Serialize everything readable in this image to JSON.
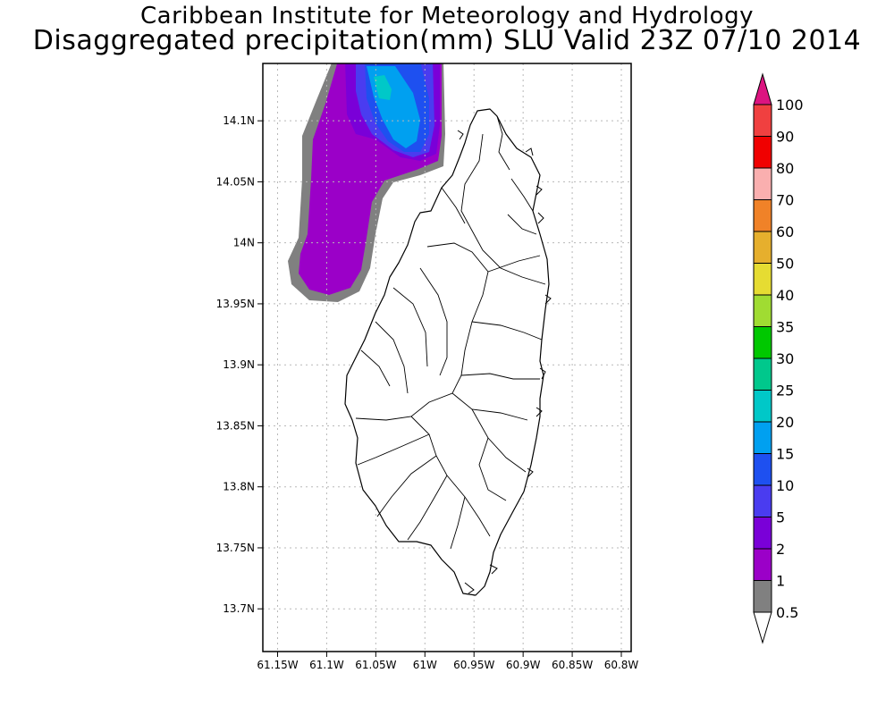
{
  "header": {
    "line1": "Caribbean Institute for Meteorology and Hydrology",
    "line2": "Disaggregated precipitation(mm) SLU Valid 23Z 07/10 2014"
  },
  "axes": {
    "lat_ticks": [
      {
        "label": "14.1N",
        "value": 14.1
      },
      {
        "label": "14.05N",
        "value": 14.05
      },
      {
        "label": "14N",
        "value": 14.0
      },
      {
        "label": "13.95N",
        "value": 13.95
      },
      {
        "label": "13.9N",
        "value": 13.9
      },
      {
        "label": "13.85N",
        "value": 13.85
      },
      {
        "label": "13.8N",
        "value": 13.8
      },
      {
        "label": "13.75N",
        "value": 13.75
      },
      {
        "label": "13.7N",
        "value": 13.7
      }
    ],
    "lon_ticks": [
      {
        "label": "61.15W",
        "value": -61.15
      },
      {
        "label": "61.1W",
        "value": -61.1
      },
      {
        "label": "61.05W",
        "value": -61.05
      },
      {
        "label": "61W",
        "value": -61.0
      },
      {
        "label": "60.95W",
        "value": -60.95
      },
      {
        "label": "60.9W",
        "value": -60.9
      },
      {
        "label": "60.85W",
        "value": -60.85
      },
      {
        "label": "60.8W",
        "value": -60.8
      }
    ],
    "lon_range": [
      -61.165,
      -60.79
    ],
    "lat_range": [
      13.665,
      14.147
    ]
  },
  "colorbar": {
    "levels": [
      "0.5",
      "1",
      "2",
      "5",
      "10",
      "15",
      "20",
      "25",
      "30",
      "35",
      "40",
      "50",
      "60",
      "70",
      "80",
      "90",
      "100"
    ],
    "colors": [
      "#ffffff",
      "#808080",
      "#9b00c8",
      "#7a00d8",
      "#4a3cf0",
      "#1e50f0",
      "#00a0f0",
      "#00c8c8",
      "#00c88c",
      "#00c800",
      "#a0dc32",
      "#e6dc32",
      "#e6af2d",
      "#f08228",
      "#faafaf",
      "#f00000",
      "#f04040",
      "#dc1480"
    ]
  },
  "colors": {
    "gray_05_1": "#808080",
    "purple_1_2": "#9b00c8",
    "violet_2_5": "#7a00d8",
    "blue_5_10": "#4a3cf0",
    "blue_10_15": "#1e50f0",
    "lightblue_15_20": "#00a0f0",
    "cyan_20_25": "#00c8c8"
  }
}
